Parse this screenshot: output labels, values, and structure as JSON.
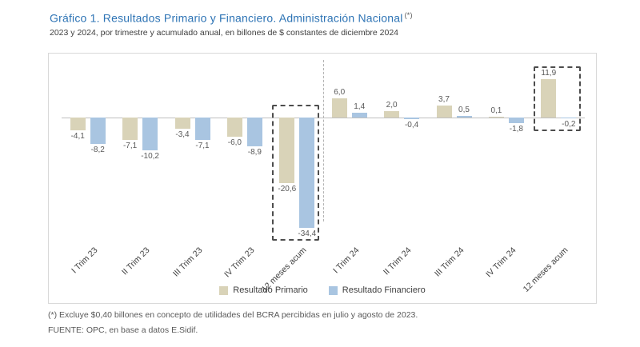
{
  "title": "Gráfico 1. Resultados Primario y Financiero. Administración Nacional",
  "title_marker": "(*)",
  "subtitle": "2023 y 2024, por trimestre y acumulado anual, en billones de $ constantes de diciembre 2024",
  "footnote": "(*) Excluye $0,40 billones en concepto de utilidades del BCRA percibidas en julio y agosto de 2023.",
  "source": "FUENTE: OPC, en base a datos E.Sidif.",
  "colors": {
    "title": "#2E74B5",
    "primario": "#d9d3b8",
    "financiero": "#a9c5e1",
    "axis": "#bfbfbf",
    "value_label": "#595959",
    "highlight_border": "#4d4d4d"
  },
  "chart_data": {
    "type": "bar",
    "categories": [
      "I Trim 23",
      "II Trim 23",
      "III Trim 23",
      "IV Trim 23",
      "12 meses acum",
      "I Trim 24",
      "II Trim 24",
      "III Trim 24",
      "IV Trim 24",
      "12 meses acum"
    ],
    "series": [
      {
        "name": "Resultado Primario",
        "values": [
          -4.1,
          -7.1,
          -3.4,
          -6.0,
          -20.6,
          6.0,
          2.0,
          3.7,
          0.1,
          11.9
        ]
      },
      {
        "name": "Resultado Financiero",
        "values": [
          -8.2,
          -10.2,
          -7.1,
          -8.9,
          -34.4,
          1.4,
          -0.4,
          0.5,
          -1.8,
          -0.2
        ]
      }
    ],
    "value_labels": [
      [
        "-4,1",
        "-7,1",
        "-3,4",
        "-6,0",
        "-20,6",
        "6,0",
        "2,0",
        "3,7",
        "0,1",
        "11,9"
      ],
      [
        "-8,2",
        "-10,2",
        "-7,1",
        "-8,9",
        "-34,4",
        "1,4",
        "-0,4",
        "0,5",
        "-1,8",
        "-0,2"
      ]
    ],
    "ylim": [
      -38,
      14
    ],
    "grid": false,
    "separator_after_group": 4,
    "highlight_groups": [
      4,
      9
    ],
    "legend": [
      "Resultado Primario",
      "Resultado Financiero"
    ],
    "legend_position": "bottom"
  }
}
